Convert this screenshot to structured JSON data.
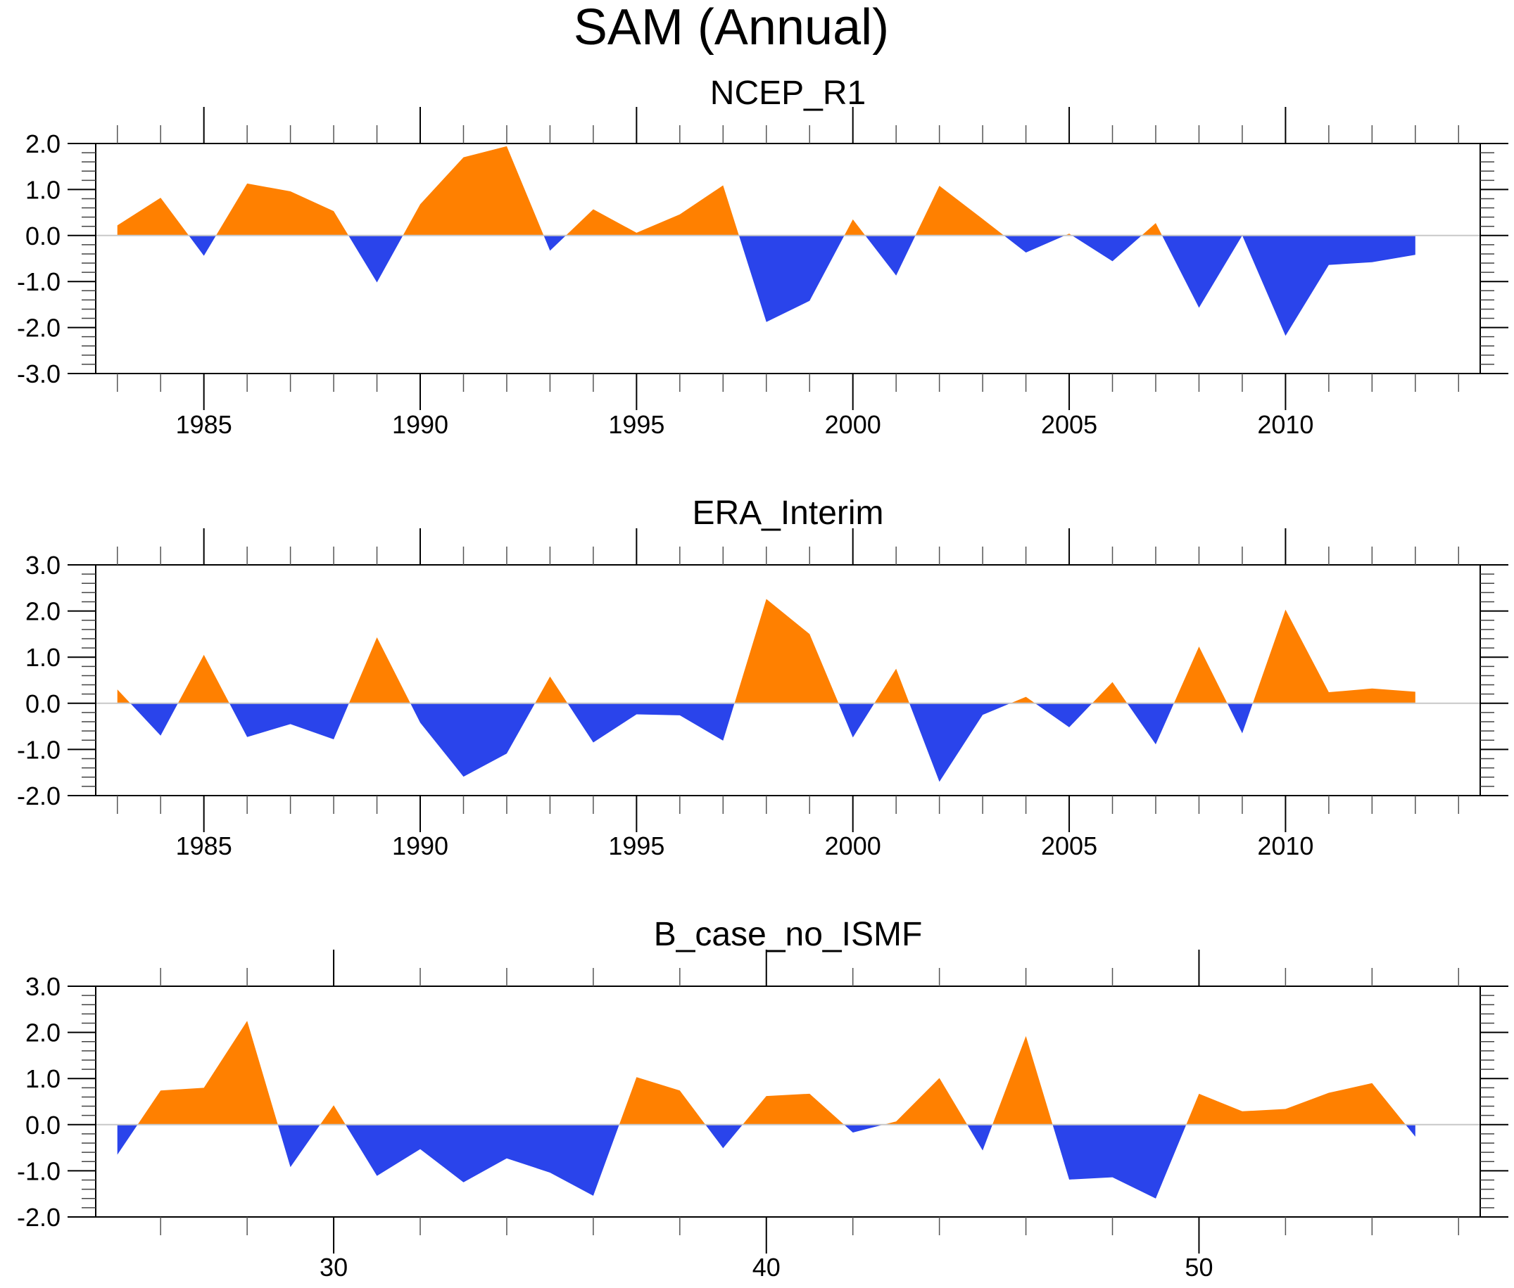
{
  "chart_data": {
    "type": "area",
    "title": "SAM (Annual)",
    "fill_colors": {
      "positive": "#FF8000",
      "negative": "#2A44EB"
    },
    "panels": [
      {
        "title": "NCEP_R1",
        "xlabel": "",
        "ylabel": "",
        "xlim": [
          1982.5,
          2014.5
        ],
        "ylim": [
          -3.0,
          2.0
        ],
        "yticks": [
          2.0,
          1.0,
          0.0,
          -1.0,
          -2.0,
          -3.0
        ],
        "ytick_labels": [
          "2.0",
          "1.0",
          "0.0",
          "-1.0",
          "-2.0",
          "-3.0"
        ],
        "xticks": [
          1985,
          1990,
          1995,
          2000,
          2005,
          2010
        ],
        "xtick_labels": [
          "1985",
          "1990",
          "1995",
          "2000",
          "2005",
          "2010"
        ],
        "x_minor_step": 1,
        "x": [
          1983,
          1984,
          1985,
          1986,
          1987,
          1988,
          1989,
          1990,
          1991,
          1992,
          1993,
          1994,
          1995,
          1996,
          1997,
          1998,
          1999,
          2000,
          2001,
          2002,
          2003,
          2004,
          2005,
          2006,
          2007,
          2008,
          2009,
          2010,
          2011,
          2012,
          2013
        ],
        "values": [
          0.22,
          0.82,
          -0.44,
          1.13,
          0.96,
          0.53,
          -1.02,
          0.68,
          1.7,
          1.94,
          -0.33,
          0.57,
          0.06,
          0.46,
          1.09,
          -1.88,
          -1.42,
          0.35,
          -0.87,
          1.08,
          0.36,
          -0.37,
          0.04,
          -0.56,
          0.27,
          -1.57,
          0.0,
          -2.18,
          -0.64,
          -0.58,
          -0.42
        ]
      },
      {
        "title": "ERA_Interim",
        "xlabel": "",
        "ylabel": "",
        "xlim": [
          1982.5,
          2014.5
        ],
        "ylim": [
          -2.0,
          3.0
        ],
        "yticks": [
          3.0,
          2.0,
          1.0,
          0.0,
          -1.0,
          -2.0
        ],
        "ytick_labels": [
          "3.0",
          "2.0",
          "1.0",
          "0.0",
          "-1.0",
          "-2.0"
        ],
        "xticks": [
          1985,
          1990,
          1995,
          2000,
          2005,
          2010
        ],
        "xtick_labels": [
          "1985",
          "1990",
          "1995",
          "2000",
          "2005",
          "2010"
        ],
        "x_minor_step": 1,
        "x": [
          1983,
          1984,
          1985,
          1986,
          1987,
          1988,
          1989,
          1990,
          1991,
          1992,
          1993,
          1994,
          1995,
          1996,
          1997,
          1998,
          1999,
          2000,
          2001,
          2002,
          2003,
          2004,
          2005,
          2006,
          2007,
          2008,
          2009,
          2010,
          2011,
          2012,
          2013
        ],
        "values": [
          0.3,
          -0.7,
          1.05,
          -0.73,
          -0.45,
          -0.78,
          1.43,
          -0.42,
          -1.59,
          -1.09,
          0.58,
          -0.85,
          -0.24,
          -0.26,
          -0.81,
          2.26,
          1.5,
          -0.74,
          0.75,
          -1.7,
          -0.25,
          0.14,
          -0.52,
          0.46,
          -0.89,
          1.23,
          -0.65,
          2.03,
          0.24,
          0.32,
          0.25
        ]
      },
      {
        "title": "B_case_no_ISMF",
        "xlabel": "",
        "ylabel": "",
        "xlim": [
          24.5,
          56.5
        ],
        "ylim": [
          -2.0,
          3.0
        ],
        "yticks": [
          3.0,
          2.0,
          1.0,
          0.0,
          -1.0,
          -2.0
        ],
        "ytick_labels": [
          "3.0",
          "2.0",
          "1.0",
          "0.0",
          "-1.0",
          "-2.0"
        ],
        "xticks": [
          30,
          40,
          50
        ],
        "xtick_labels": [
          "30",
          "40",
          "50"
        ],
        "x_minor_step": 2,
        "x": [
          25,
          26,
          27,
          28,
          29,
          30,
          31,
          32,
          33,
          34,
          35,
          36,
          37,
          38,
          39,
          40,
          41,
          42,
          43,
          44,
          45,
          46,
          47,
          48,
          49,
          50,
          51,
          52,
          53,
          54,
          55
        ],
        "values": [
          -0.65,
          0.74,
          0.8,
          2.25,
          -0.92,
          0.42,
          -1.11,
          -0.53,
          -1.25,
          -0.73,
          -1.04,
          -1.54,
          1.03,
          0.74,
          -0.51,
          0.62,
          0.67,
          -0.17,
          0.07,
          1.01,
          -0.56,
          1.92,
          -1.19,
          -1.14,
          -1.6,
          0.67,
          0.29,
          0.34,
          0.69,
          0.9,
          -0.26
        ]
      }
    ],
    "grid": false,
    "legend": "none"
  }
}
